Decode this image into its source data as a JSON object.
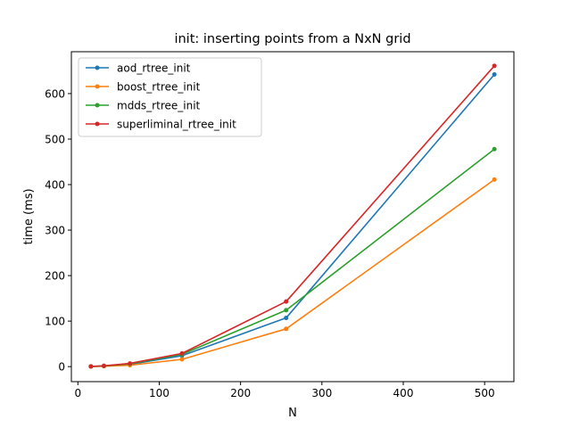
{
  "chart_data": {
    "type": "line",
    "title": "init: inserting points from a NxN grid",
    "xlabel": "N",
    "ylabel": "time (ms)",
    "xlim": [
      -8,
      536
    ],
    "ylim": [
      -33,
      692
    ],
    "xticks": [
      0,
      100,
      200,
      300,
      400,
      500
    ],
    "yticks": [
      0,
      100,
      200,
      300,
      400,
      500,
      600
    ],
    "grid": false,
    "legend_position": "upper-left",
    "x": [
      16,
      32,
      64,
      128,
      256,
      512
    ],
    "series": [
      {
        "name": "aod_rtree_init",
        "color": "#1f77b4",
        "values": [
          0.3,
          1.2,
          5,
          24,
          107,
          642
        ]
      },
      {
        "name": "boost_rtree_init",
        "color": "#ff7f0e",
        "values": [
          0.2,
          0.8,
          3,
          16,
          83,
          411
        ]
      },
      {
        "name": "mdds_rtree_init",
        "color": "#2ca02c",
        "values": [
          0.4,
          1.5,
          6,
          27,
          124,
          478
        ]
      },
      {
        "name": "superliminal_rtree_init",
        "color": "#d62728",
        "values": [
          0.5,
          1.8,
          7,
          29,
          143,
          661
        ]
      }
    ]
  }
}
